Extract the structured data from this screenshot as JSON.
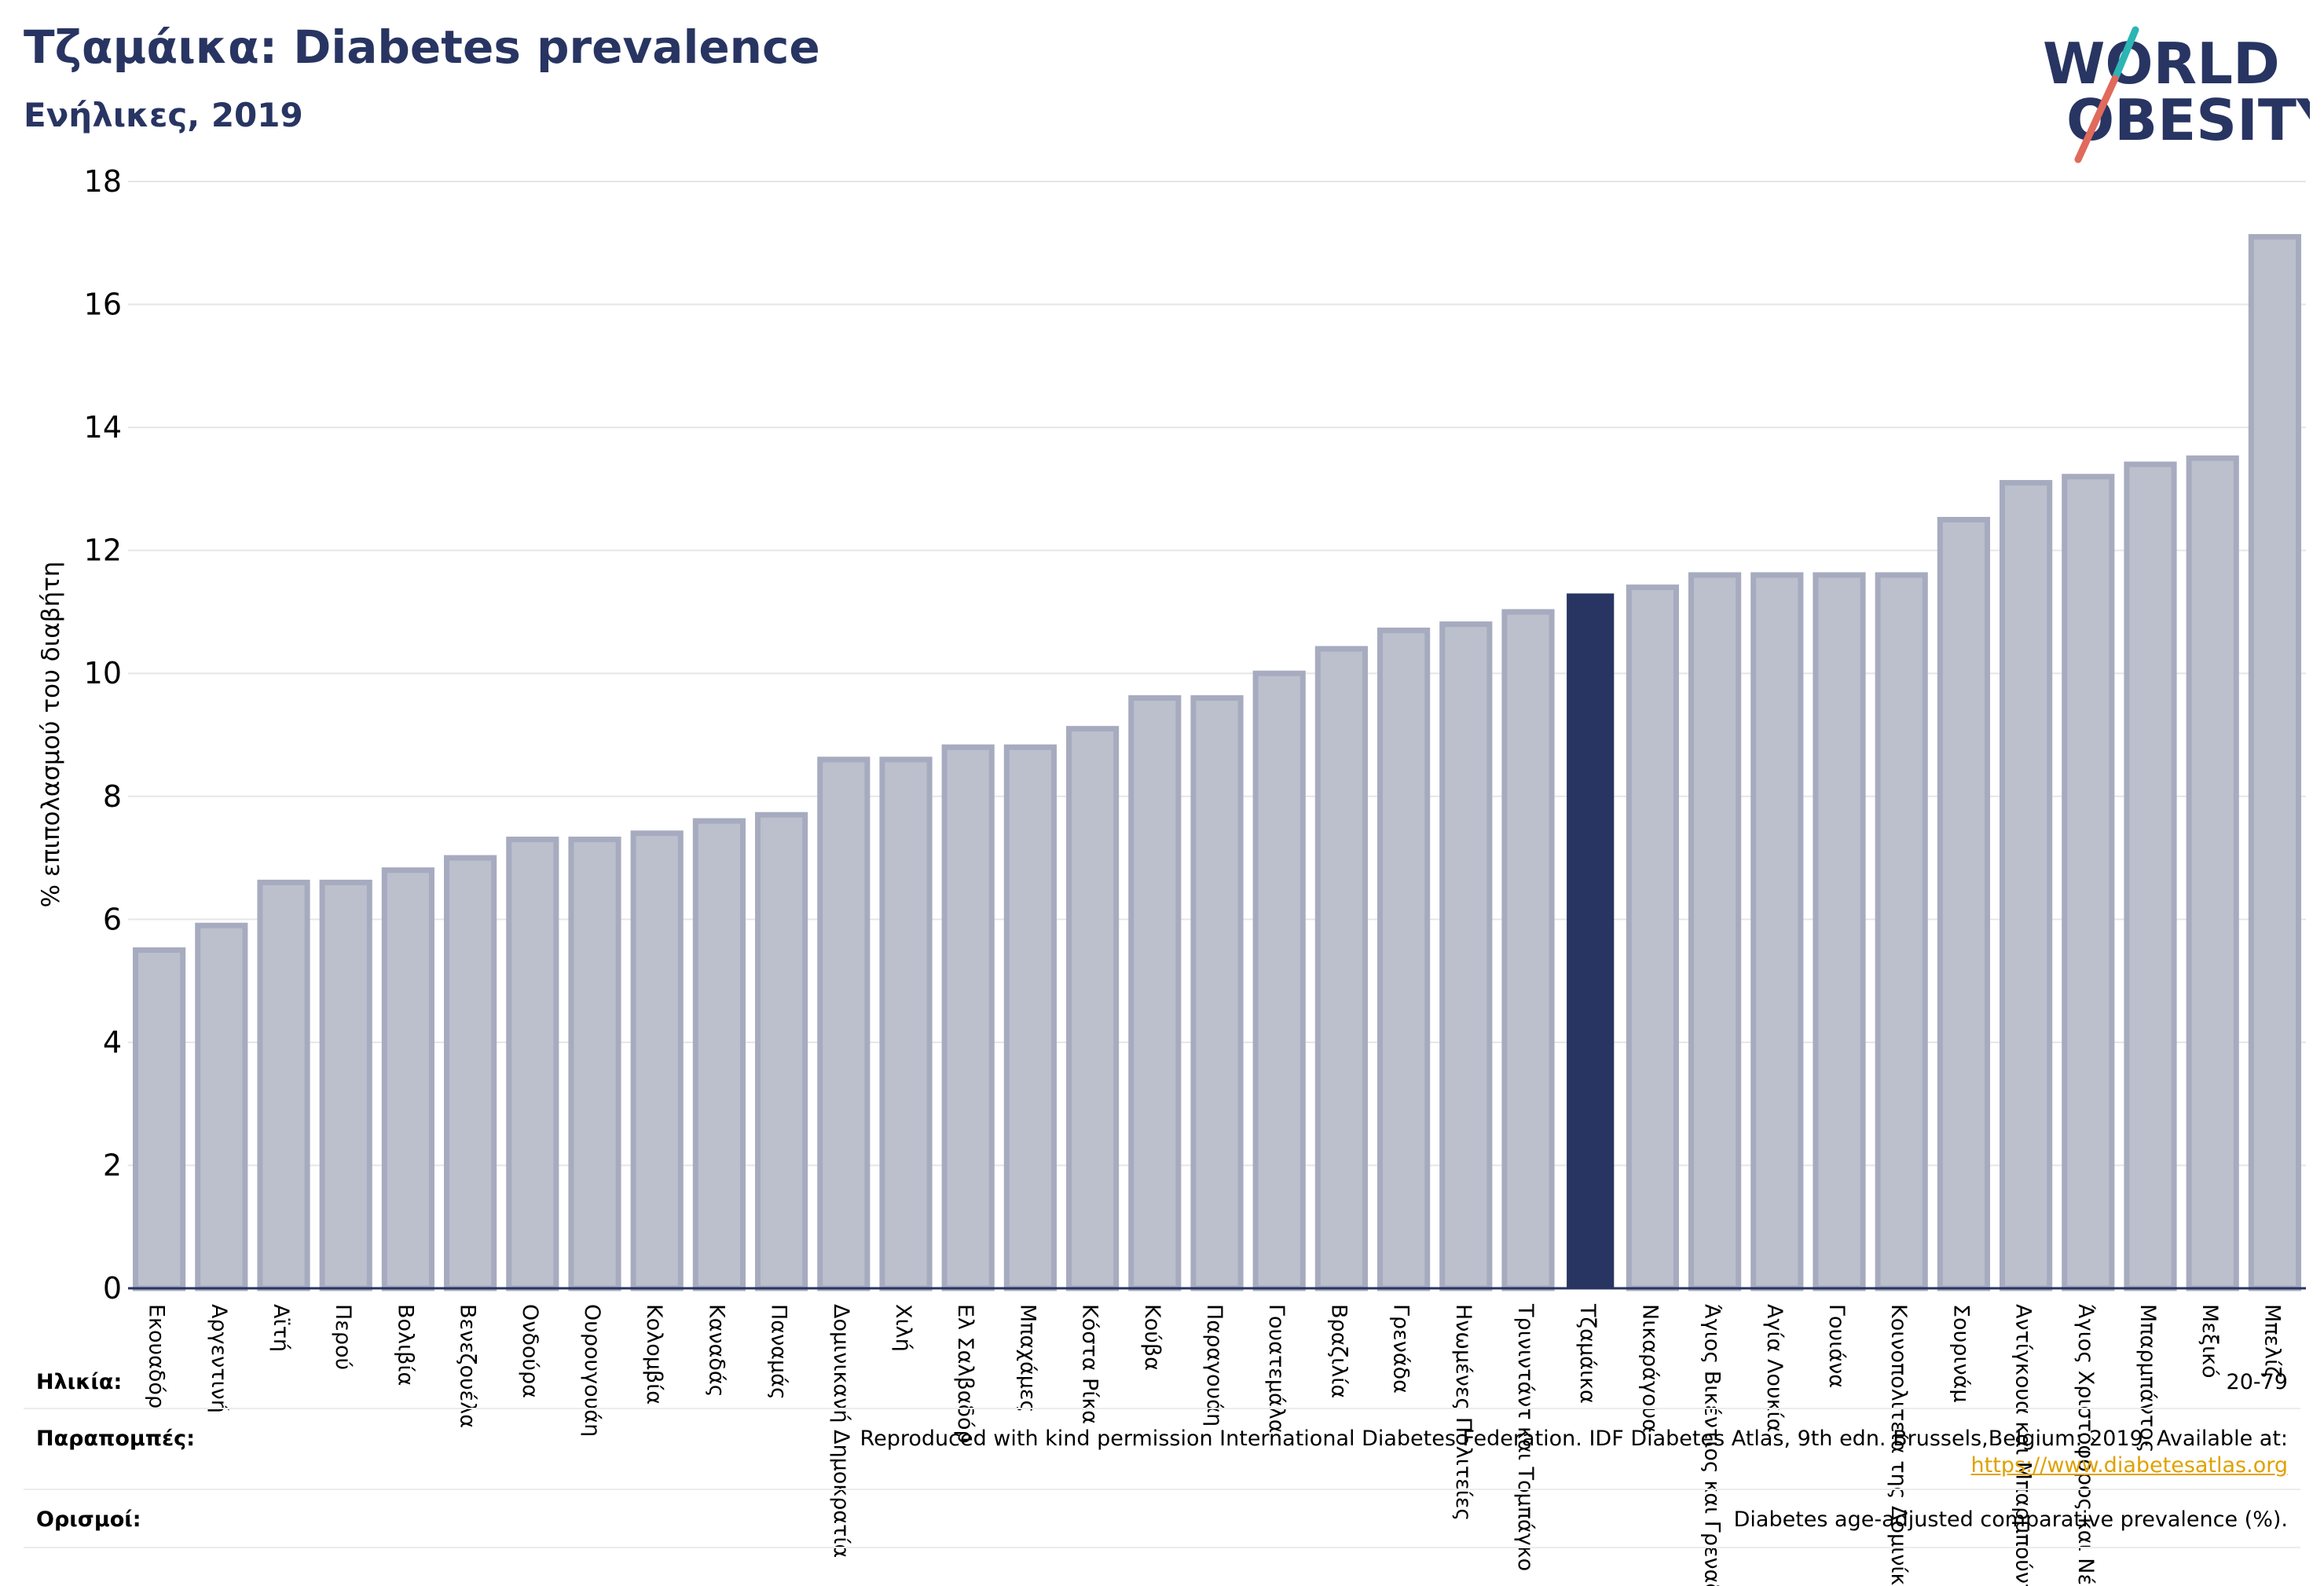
{
  "header": {
    "title": "Τζαμάικα: Diabetes prevalence",
    "subtitle": "Ενήλικες, 2019"
  },
  "logo": {
    "line1": "WORLD",
    "line2": "OBESITY",
    "colors": {
      "text": "#283562",
      "slash_top": "#2bb5b4",
      "slash_bottom": "#e06a5c"
    }
  },
  "colors": {
    "bar": "#bcbfcc",
    "bar_stroke": "#a7abbf",
    "highlight": "#283562",
    "axis": "#283562",
    "grid": "#e6e6e6"
  },
  "chart_data": {
    "type": "bar",
    "ylabel": "% επιπολασμού του διαβήτη",
    "ylim": [
      0,
      18
    ],
    "yticks": [
      0,
      2,
      4,
      6,
      8,
      10,
      12,
      14,
      16,
      18
    ],
    "grid": true,
    "highlight": "Τζαμάικα",
    "categories": [
      "Εκουαδόρ",
      "Αργεντινή",
      "Αϊτή",
      "Περού",
      "Βολιβία",
      "Βενεζουέλα",
      "Ονδούρα",
      "Ουρουγουάη",
      "Κολομβία",
      "Καναδάς",
      "Παναμάς",
      "Δομινικανή Δημοκρατία",
      "Χιλή",
      "Ελ Σαλβαδόρ",
      "Μπαχάμες",
      "Κόστα Ρίκα",
      "Κούβα",
      "Παραγουάη",
      "Γουατεμάλα",
      "Βραζιλία",
      "Γρενάδα",
      "Ηνωμένες Πολιτείες",
      "Τρινιντάντ και Τομπάγκο",
      "Τζαμάικα",
      "Νικαράγουα",
      "Άγιος Βικέντιος και Γρεναδίνες",
      "Αγία Λουκία",
      "Γουιάνα",
      "Κοινοπολιτεία της Δομινίκας",
      "Σουρινάμ",
      "Αντίγκουα και Μπαρμπούντα",
      "Άγιος Χριστόφορος και Νέβις",
      "Μπαρμπάντος",
      "Μεξικό",
      "Μπελίζ"
    ],
    "values": [
      5.5,
      5.9,
      6.6,
      6.6,
      6.8,
      7.0,
      7.3,
      7.3,
      7.4,
      7.6,
      7.7,
      8.6,
      8.6,
      8.8,
      8.8,
      9.1,
      9.6,
      9.6,
      10.0,
      10.4,
      10.7,
      10.8,
      11.0,
      11.3,
      11.4,
      11.6,
      11.6,
      11.6,
      11.6,
      12.5,
      13.1,
      13.2,
      13.4,
      13.5,
      17.1
    ]
  },
  "footer": {
    "age_label": "Ηλικία:",
    "age_value": "20-79",
    "refs_label": "Παραπομπές:",
    "refs_value": "Reproduced with kind permission International Diabetes Federation. IDF Diabetes Atlas, 9th edn. Brussels,Belgium: 2019. Available at:",
    "refs_link": "https://www.diabetesatlas.org",
    "defs_label": "Ορισμοί:",
    "defs_value": "Diabetes age-adjusted comparative prevalence (%)."
  }
}
